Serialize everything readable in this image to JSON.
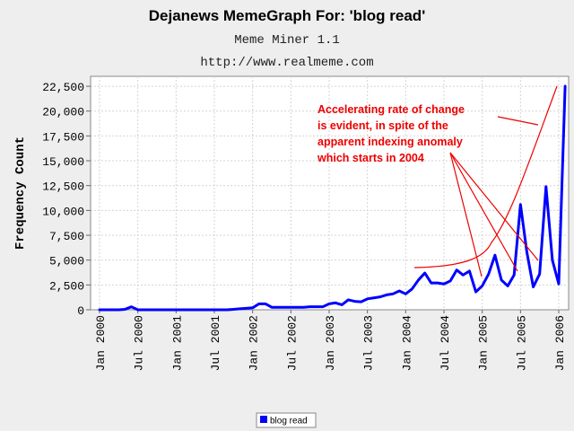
{
  "chart_data": {
    "type": "line",
    "title": "Dejanews MemeGraph For: 'blog read'",
    "subtitle": "Meme Miner 1.1",
    "source_url": "http://www.realmeme.com",
    "xlabel": "",
    "ylabel": "Frequency Count",
    "ylim": [
      0,
      23500
    ],
    "y_ticks": [
      0,
      2500,
      5000,
      7500,
      10000,
      12500,
      15000,
      17500,
      20000,
      22500
    ],
    "y_tick_labels": [
      "0",
      "2,500",
      "5,000",
      "7,500",
      "10,000",
      "12,500",
      "15,000",
      "17,500",
      "20,000",
      "22,500"
    ],
    "x_range": [
      "2000-01",
      "2006-01"
    ],
    "x_tick_labels": [
      "Jan 2000",
      "Jul 2000",
      "Jan 2001",
      "Jul 2001",
      "Jan 2002",
      "Jul 2002",
      "Jan 2003",
      "Jul 2003",
      "Jan 2004",
      "Jul 2004",
      "Jan 2005",
      "Jul 2005",
      "Jan 2006"
    ],
    "grid": true,
    "legend_placement": "bottom-center",
    "series": [
      {
        "name": "blog read",
        "color": "#0000ff",
        "points": [
          [
            "2000-01",
            0
          ],
          [
            "2000-02",
            0
          ],
          [
            "2000-03",
            0
          ],
          [
            "2000-04",
            0
          ],
          [
            "2000-05",
            50
          ],
          [
            "2000-06",
            300
          ],
          [
            "2000-07",
            0
          ],
          [
            "2000-08",
            0
          ],
          [
            "2000-09",
            0
          ],
          [
            "2000-10",
            0
          ],
          [
            "2000-11",
            0
          ],
          [
            "2000-12",
            0
          ],
          [
            "2001-01",
            0
          ],
          [
            "2001-02",
            0
          ],
          [
            "2001-03",
            0
          ],
          [
            "2001-04",
            0
          ],
          [
            "2001-05",
            0
          ],
          [
            "2001-06",
            0
          ],
          [
            "2001-07",
            0
          ],
          [
            "2001-08",
            0
          ],
          [
            "2001-09",
            0
          ],
          [
            "2001-10",
            50
          ],
          [
            "2001-11",
            100
          ],
          [
            "2001-12",
            150
          ],
          [
            "2002-01",
            200
          ],
          [
            "2002-02",
            600
          ],
          [
            "2002-03",
            600
          ],
          [
            "2002-04",
            250
          ],
          [
            "2002-05",
            250
          ],
          [
            "2002-06",
            250
          ],
          [
            "2002-07",
            250
          ],
          [
            "2002-08",
            250
          ],
          [
            "2002-09",
            250
          ],
          [
            "2002-10",
            300
          ],
          [
            "2002-11",
            300
          ],
          [
            "2002-12",
            300
          ],
          [
            "2003-01",
            600
          ],
          [
            "2003-02",
            700
          ],
          [
            "2003-03",
            500
          ],
          [
            "2003-04",
            1000
          ],
          [
            "2003-05",
            850
          ],
          [
            "2003-06",
            800
          ],
          [
            "2003-07",
            1100
          ],
          [
            "2003-08",
            1200
          ],
          [
            "2003-09",
            1300
          ],
          [
            "2003-10",
            1500
          ],
          [
            "2003-11",
            1600
          ],
          [
            "2003-12",
            1900
          ],
          [
            "2004-01",
            1600
          ],
          [
            "2004-02",
            2100
          ],
          [
            "2004-03",
            3000
          ],
          [
            "2004-04",
            3700
          ],
          [
            "2004-05",
            2700
          ],
          [
            "2004-06",
            2700
          ],
          [
            "2004-07",
            2600
          ],
          [
            "2004-08",
            2900
          ],
          [
            "2004-09",
            4000
          ],
          [
            "2004-10",
            3500
          ],
          [
            "2004-11",
            3900
          ],
          [
            "2004-12",
            1800
          ],
          [
            "2005-01",
            2400
          ],
          [
            "2005-02",
            3600
          ],
          [
            "2005-03",
            5500
          ],
          [
            "2005-04",
            3000
          ],
          [
            "2005-05",
            2400
          ],
          [
            "2005-06",
            3500
          ],
          [
            "2005-07",
            10600
          ],
          [
            "2005-08",
            5800
          ],
          [
            "2005-09",
            2300
          ],
          [
            "2005-10",
            3600
          ],
          [
            "2005-11",
            12400
          ],
          [
            "2005-12",
            5000
          ],
          [
            "2006-01",
            2600
          ],
          [
            "2006-02",
            22500
          ]
        ]
      }
    ],
    "annotation": {
      "lines": [
        "Accelerating rate of change",
        "is evident, in spite of the",
        "apparent indexing anomaly",
        "which starts in 2004"
      ],
      "color": "#ee0000"
    }
  }
}
